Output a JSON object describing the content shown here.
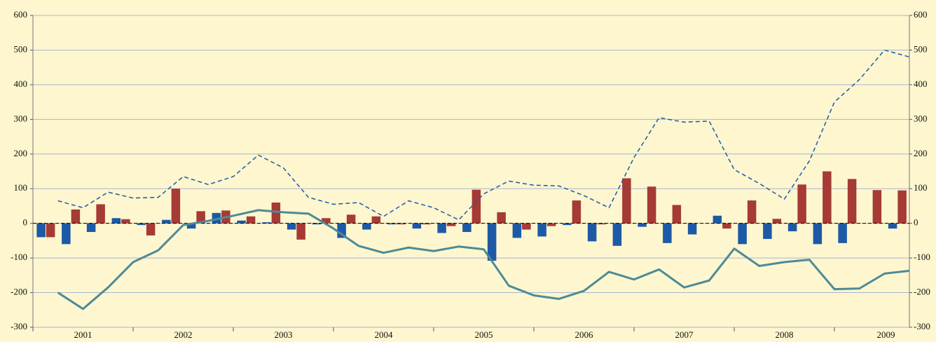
{
  "chart_data": {
    "type": "bar",
    "categories": [
      null,
      null,
      null,
      null,
      null,
      null,
      null,
      null,
      null,
      null,
      null,
      null,
      null,
      null,
      null,
      null,
      null,
      null,
      null,
      null,
      null,
      null,
      null,
      null,
      null,
      null,
      null,
      null,
      null,
      null,
      null,
      null,
      null,
      null,
      null
    ],
    "x_groups": [
      "2001",
      "2002",
      "2003",
      "2004",
      "2005",
      "2006",
      "2007",
      "2008",
      "2009"
    ],
    "series": [
      {
        "color": "#1d5aa6",
        "kind": "bar",
        "values": [
          -40,
          -60,
          -25,
          15,
          -5,
          10,
          -15,
          30,
          8,
          3,
          -18,
          -3,
          -42,
          -18,
          -3,
          -15,
          -28,
          -25,
          -108,
          -42,
          -38,
          -5,
          -52,
          -65,
          -10,
          -57,
          -32,
          22,
          -60,
          -45,
          -23,
          -60,
          -57,
          0,
          -15
        ]
      },
      {
        "color": "#a63a35",
        "kind": "bar",
        "values": [
          -40,
          40,
          55,
          12,
          -35,
          100,
          35,
          37,
          20,
          60,
          -47,
          15,
          25,
          20,
          -3,
          -3,
          -8,
          97,
          32,
          -18,
          -8,
          66,
          -3,
          130,
          106,
          53,
          0,
          -15,
          66,
          13,
          112,
          150,
          128,
          96,
          95
        ]
      },
      {
        "color": "#1d5aa6",
        "kind": "dashed-line",
        "values": [
          65,
          45,
          90,
          73,
          75,
          135,
          112,
          135,
          197,
          160,
          75,
          55,
          60,
          20,
          65,
          45,
          10,
          85,
          122,
          110,
          108,
          80,
          45,
          190,
          305,
          292,
          295,
          155,
          115,
          70,
          180,
          350,
          415,
          500,
          480
        ]
      },
      {
        "color": "#4e8a96",
        "kind": "line",
        "values": [
          -200,
          -247,
          -185,
          -112,
          -78,
          -5,
          7,
          22,
          38,
          32,
          28,
          -15,
          -65,
          -85,
          -70,
          -80,
          -67,
          -75,
          -180,
          -208,
          -218,
          -195,
          -140,
          -162,
          -133,
          -185,
          -165,
          -73,
          -123,
          -112,
          -105,
          -190,
          -188,
          -145,
          -137
        ]
      }
    ],
    "ylim": [
      -300,
      600
    ],
    "yticks": [
      -300,
      -200,
      -100,
      0,
      100,
      200,
      300,
      400,
      500,
      600
    ],
    "y2lim": [
      -300,
      600
    ],
    "y2ticks": [
      -300,
      -200,
      -100,
      0,
      100,
      200,
      300,
      400,
      500,
      600
    ],
    "grid": true
  }
}
